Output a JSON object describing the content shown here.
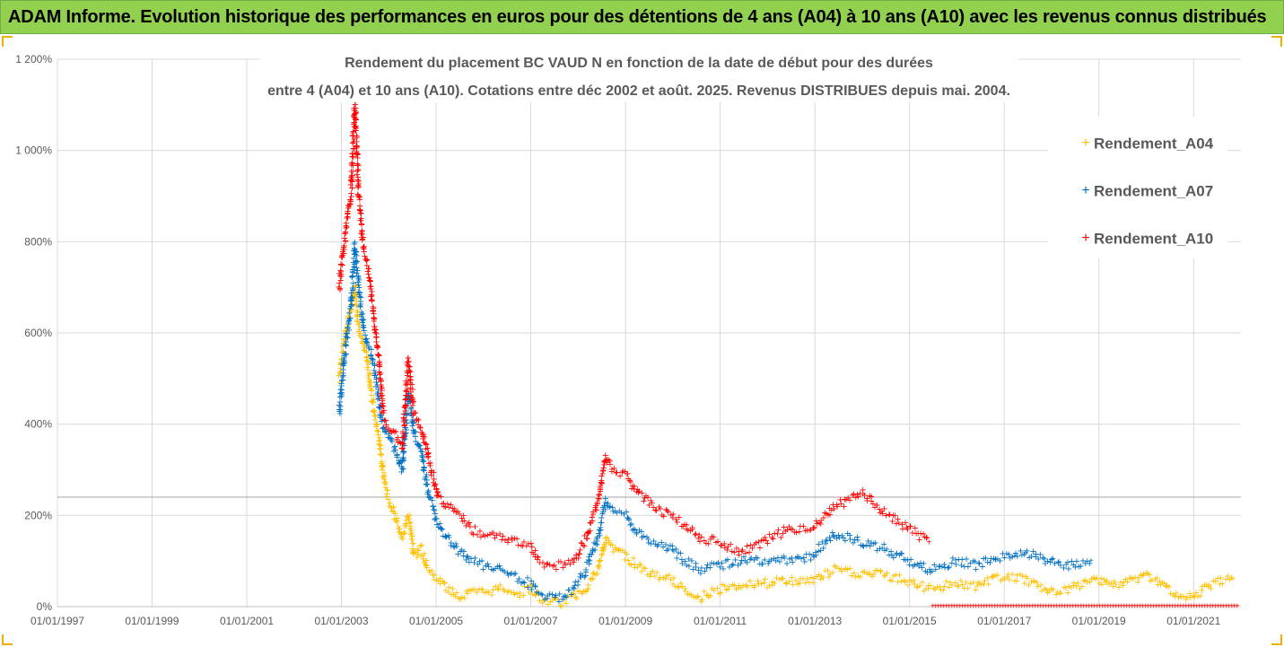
{
  "banner": {
    "text": "ADAM Informe. Evolution historique des performances en euros pour des détentions de 4 ans (A04) à 10 ans (A10) avec les revenus connus distribués"
  },
  "colors": {
    "banner_bg": "#92d050",
    "A04": "#ffc000",
    "A07": "#0070c0",
    "A10": "#ff0000",
    "grid": "#d9d9d9",
    "text": "#595959"
  },
  "chart_data": {
    "type": "scatter",
    "title_lines": [
      "Rendement du placement BC VAUD N en fonction de la date de début pour des durées",
      "entre 4 (A04) et 10 ans (A10). Cotations entre déc 2002 et août. 2025. Revenus DISTRIBUES depuis mai. 2004."
    ],
    "x_axis": {
      "type": "date",
      "range": [
        "1997-01-01",
        "2022-01-01"
      ],
      "tick_labels": [
        "01/01/1997",
        "01/01/1999",
        "01/01/2001",
        "01/01/2003",
        "01/01/2005",
        "01/01/2007",
        "01/01/2009",
        "01/01/2011",
        "01/01/2013",
        "01/01/2015",
        "01/01/2017",
        "01/01/2019",
        "01/01/2021"
      ]
    },
    "y_axis": {
      "unit": "%",
      "range": [
        0,
        1200
      ],
      "tick_values": [
        0,
        200,
        400,
        600,
        800,
        1000,
        1200
      ],
      "tick_labels": [
        "0%",
        "200%",
        "400%",
        "600%",
        "800%",
        "1 000%",
        "1 200%"
      ]
    },
    "grid": true,
    "reference_line_y": 240,
    "legend": {
      "placement": "right",
      "entries": [
        "Rendement_A04",
        "Rendement_A07",
        "Rendement_A10"
      ]
    },
    "series": [
      {
        "name": "Rendement_A04",
        "color": "#ffc000",
        "points": [
          [
            "2002-12-15",
            500
          ],
          [
            "2003-01-15",
            560
          ],
          [
            "2003-02-15",
            620
          ],
          [
            "2003-03-15",
            650
          ],
          [
            "2003-04-15",
            700
          ],
          [
            "2003-05-15",
            610
          ],
          [
            "2003-06-15",
            580
          ],
          [
            "2003-07-15",
            550
          ],
          [
            "2003-08-15",
            480
          ],
          [
            "2003-09-15",
            420
          ],
          [
            "2003-10-15",
            380
          ],
          [
            "2003-11-15",
            300
          ],
          [
            "2003-12-15",
            250
          ],
          [
            "2004-02-15",
            200
          ],
          [
            "2004-04-15",
            150
          ],
          [
            "2004-06-01",
            200
          ],
          [
            "2004-07-15",
            110
          ],
          [
            "2004-09-01",
            130
          ],
          [
            "2004-11-01",
            80
          ],
          [
            "2005-01-15",
            60
          ],
          [
            "2005-04-01",
            40
          ],
          [
            "2005-07-01",
            20
          ],
          [
            "2005-10-01",
            30
          ],
          [
            "2006-01-01",
            30
          ],
          [
            "2006-06-01",
            40
          ],
          [
            "2006-10-01",
            30
          ],
          [
            "2007-01-01",
            40
          ],
          [
            "2007-03-01",
            20
          ],
          [
            "2007-06-01",
            10
          ],
          [
            "2007-09-01",
            10
          ],
          [
            "2007-12-01",
            20
          ],
          [
            "2008-03-01",
            40
          ],
          [
            "2008-06-01",
            80
          ],
          [
            "2008-08-01",
            150
          ],
          [
            "2008-10-01",
            130
          ],
          [
            "2009-01-01",
            110
          ],
          [
            "2009-04-01",
            90
          ],
          [
            "2009-08-01",
            70
          ],
          [
            "2009-12-01",
            60
          ],
          [
            "2010-04-01",
            40
          ],
          [
            "2010-08-01",
            20
          ],
          [
            "2011-01-01",
            40
          ],
          [
            "2011-06-01",
            50
          ],
          [
            "2011-12-01",
            50
          ],
          [
            "2012-06-01",
            55
          ],
          [
            "2012-12-01",
            55
          ],
          [
            "2013-06-01",
            80
          ],
          [
            "2014-01-01",
            70
          ],
          [
            "2014-06-01",
            70
          ],
          [
            "2015-01-01",
            55
          ],
          [
            "2015-06-01",
            40
          ],
          [
            "2016-01-01",
            50
          ],
          [
            "2016-06-01",
            45
          ],
          [
            "2016-12-01",
            65
          ],
          [
            "2017-06-01",
            60
          ],
          [
            "2018-01-01",
            35
          ],
          [
            "2018-06-01",
            40
          ],
          [
            "2019-01-01",
            60
          ],
          [
            "2019-06-01",
            45
          ],
          [
            "2020-01-01",
            70
          ],
          [
            "2020-06-01",
            40
          ],
          [
            "2020-12-01",
            20
          ],
          [
            "2021-06-01",
            50
          ],
          [
            "2021-11-01",
            60
          ]
        ]
      },
      {
        "name": "Rendement_A07",
        "color": "#0070c0",
        "points": [
          [
            "2002-12-15",
            420
          ],
          [
            "2003-01-15",
            520
          ],
          [
            "2003-02-15",
            600
          ],
          [
            "2003-03-15",
            650
          ],
          [
            "2003-04-15",
            790
          ],
          [
            "2003-05-15",
            700
          ],
          [
            "2003-06-15",
            620
          ],
          [
            "2003-07-15",
            580
          ],
          [
            "2003-08-15",
            560
          ],
          [
            "2003-09-15",
            520
          ],
          [
            "2003-10-15",
            450
          ],
          [
            "2003-11-15",
            400
          ],
          [
            "2003-12-15",
            380
          ],
          [
            "2004-02-15",
            350
          ],
          [
            "2004-04-15",
            300
          ],
          [
            "2004-06-01",
            470
          ],
          [
            "2004-07-15",
            380
          ],
          [
            "2004-09-01",
            350
          ],
          [
            "2004-11-01",
            250
          ],
          [
            "2005-01-15",
            180
          ],
          [
            "2005-04-01",
            150
          ],
          [
            "2005-07-01",
            120
          ],
          [
            "2005-10-01",
            100
          ],
          [
            "2006-01-01",
            90
          ],
          [
            "2006-06-01",
            80
          ],
          [
            "2006-10-01",
            60
          ],
          [
            "2007-01-01",
            50
          ],
          [
            "2007-03-01",
            30
          ],
          [
            "2007-06-01",
            20
          ],
          [
            "2007-09-01",
            20
          ],
          [
            "2007-12-01",
            40
          ],
          [
            "2008-03-01",
            80
          ],
          [
            "2008-06-01",
            150
          ],
          [
            "2008-08-01",
            230
          ],
          [
            "2008-10-01",
            210
          ],
          [
            "2009-01-01",
            200
          ],
          [
            "2009-04-01",
            160
          ],
          [
            "2009-08-01",
            140
          ],
          [
            "2009-12-01",
            130
          ],
          [
            "2010-04-01",
            100
          ],
          [
            "2010-08-01",
            80
          ],
          [
            "2011-01-01",
            90
          ],
          [
            "2011-06-01",
            100
          ],
          [
            "2011-12-01",
            100
          ],
          [
            "2012-06-01",
            100
          ],
          [
            "2012-12-01",
            110
          ],
          [
            "2013-06-01",
            160
          ],
          [
            "2014-01-01",
            140
          ],
          [
            "2014-06-01",
            130
          ],
          [
            "2015-01-01",
            100
          ],
          [
            "2015-06-01",
            80
          ],
          [
            "2016-01-01",
            100
          ],
          [
            "2016-06-01",
            90
          ],
          [
            "2016-12-01",
            110
          ],
          [
            "2017-06-01",
            120
          ],
          [
            "2018-01-01",
            100
          ],
          [
            "2018-06-01",
            90
          ],
          [
            "2018-11-01",
            100
          ]
        ]
      },
      {
        "name": "Rendement_A10",
        "color": "#ff0000",
        "points": [
          [
            "2002-12-15",
            700
          ],
          [
            "2003-01-15",
            780
          ],
          [
            "2003-02-15",
            850
          ],
          [
            "2003-03-15",
            900
          ],
          [
            "2003-04-15",
            1100
          ],
          [
            "2003-05-15",
            900
          ],
          [
            "2003-06-15",
            800
          ],
          [
            "2003-07-15",
            760
          ],
          [
            "2003-08-15",
            700
          ],
          [
            "2003-09-15",
            620
          ],
          [
            "2003-10-15",
            550
          ],
          [
            "2003-11-15",
            430
          ],
          [
            "2003-12-15",
            400
          ],
          [
            "2004-02-15",
            380
          ],
          [
            "2004-04-15",
            350
          ],
          [
            "2004-06-01",
            540
          ],
          [
            "2004-07-15",
            420
          ],
          [
            "2004-09-01",
            400
          ],
          [
            "2004-11-01",
            330
          ],
          [
            "2005-01-15",
            240
          ],
          [
            "2005-04-01",
            220
          ],
          [
            "2005-07-01",
            200
          ],
          [
            "2005-10-01",
            170
          ],
          [
            "2006-01-01",
            160
          ],
          [
            "2006-06-01",
            150
          ],
          [
            "2006-10-01",
            140
          ],
          [
            "2007-01-01",
            130
          ],
          [
            "2007-03-01",
            100
          ],
          [
            "2007-06-01",
            90
          ],
          [
            "2007-09-01",
            90
          ],
          [
            "2007-12-01",
            100
          ],
          [
            "2008-03-01",
            150
          ],
          [
            "2008-06-01",
            230
          ],
          [
            "2008-08-01",
            330
          ],
          [
            "2008-10-01",
            300
          ],
          [
            "2009-01-01",
            290
          ],
          [
            "2009-04-01",
            250
          ],
          [
            "2009-08-01",
            220
          ],
          [
            "2009-12-01",
            200
          ],
          [
            "2010-04-01",
            180
          ],
          [
            "2010-08-01",
            150
          ],
          [
            "2011-01-01",
            140
          ],
          [
            "2011-06-01",
            120
          ],
          [
            "2011-12-01",
            140
          ],
          [
            "2012-06-01",
            170
          ],
          [
            "2012-12-01",
            170
          ],
          [
            "2013-06-01",
            220
          ],
          [
            "2014-01-01",
            250
          ],
          [
            "2014-06-01",
            210
          ],
          [
            "2015-01-01",
            170
          ],
          [
            "2015-06-01",
            140
          ]
        ]
      }
    ]
  }
}
